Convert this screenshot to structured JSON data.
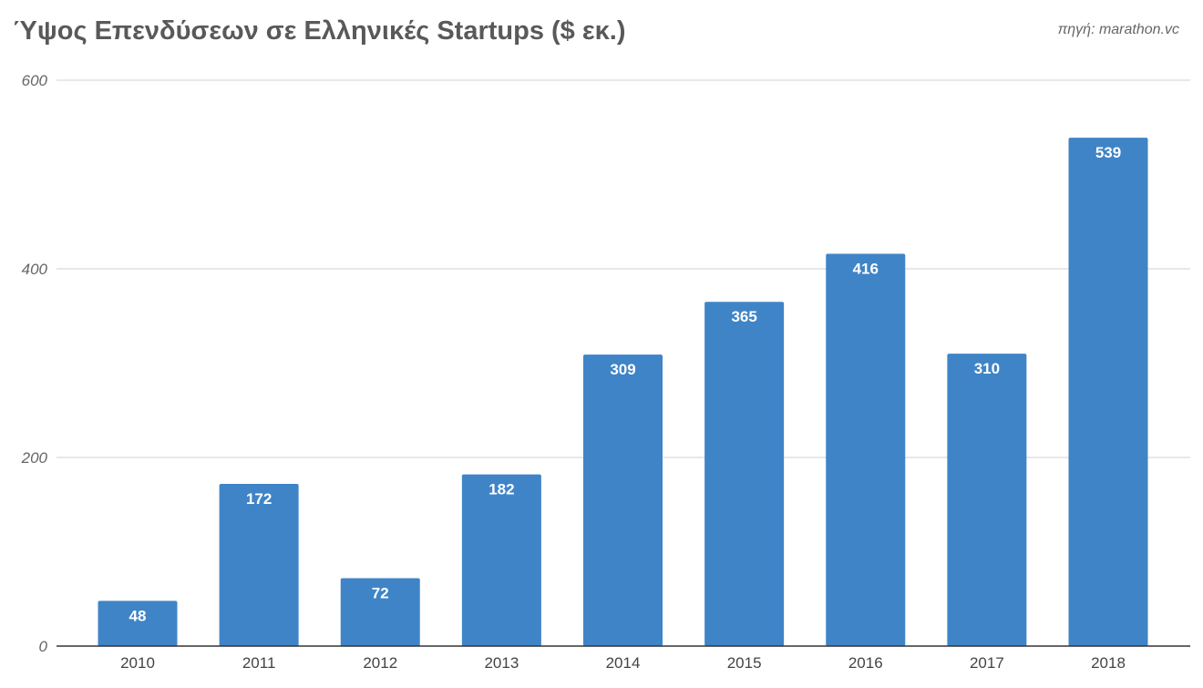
{
  "source": "πηγή: marathon.vc",
  "colors": {
    "bar": "#3f84c7",
    "grid": "#d0d0d0",
    "axis": "#333333"
  },
  "chart_data": {
    "type": "bar",
    "title": "Ύψος Επενδύσεων σε Ελληνικές Startups ($ εκ.)",
    "xlabel": "",
    "ylabel": "",
    "categories": [
      "2010",
      "2011",
      "2012",
      "2013",
      "2014",
      "2015",
      "2016",
      "2017",
      "2018"
    ],
    "values": [
      48,
      172,
      72,
      182,
      309,
      365,
      416,
      310,
      539
    ],
    "data_labels": [
      "48",
      "172",
      "72",
      "182",
      "309",
      "365",
      "416",
      "310",
      "539"
    ],
    "yticks": [
      "0",
      "200",
      "400",
      "600"
    ],
    "ylim": [
      0,
      600
    ],
    "grid": true,
    "legend": "none"
  }
}
